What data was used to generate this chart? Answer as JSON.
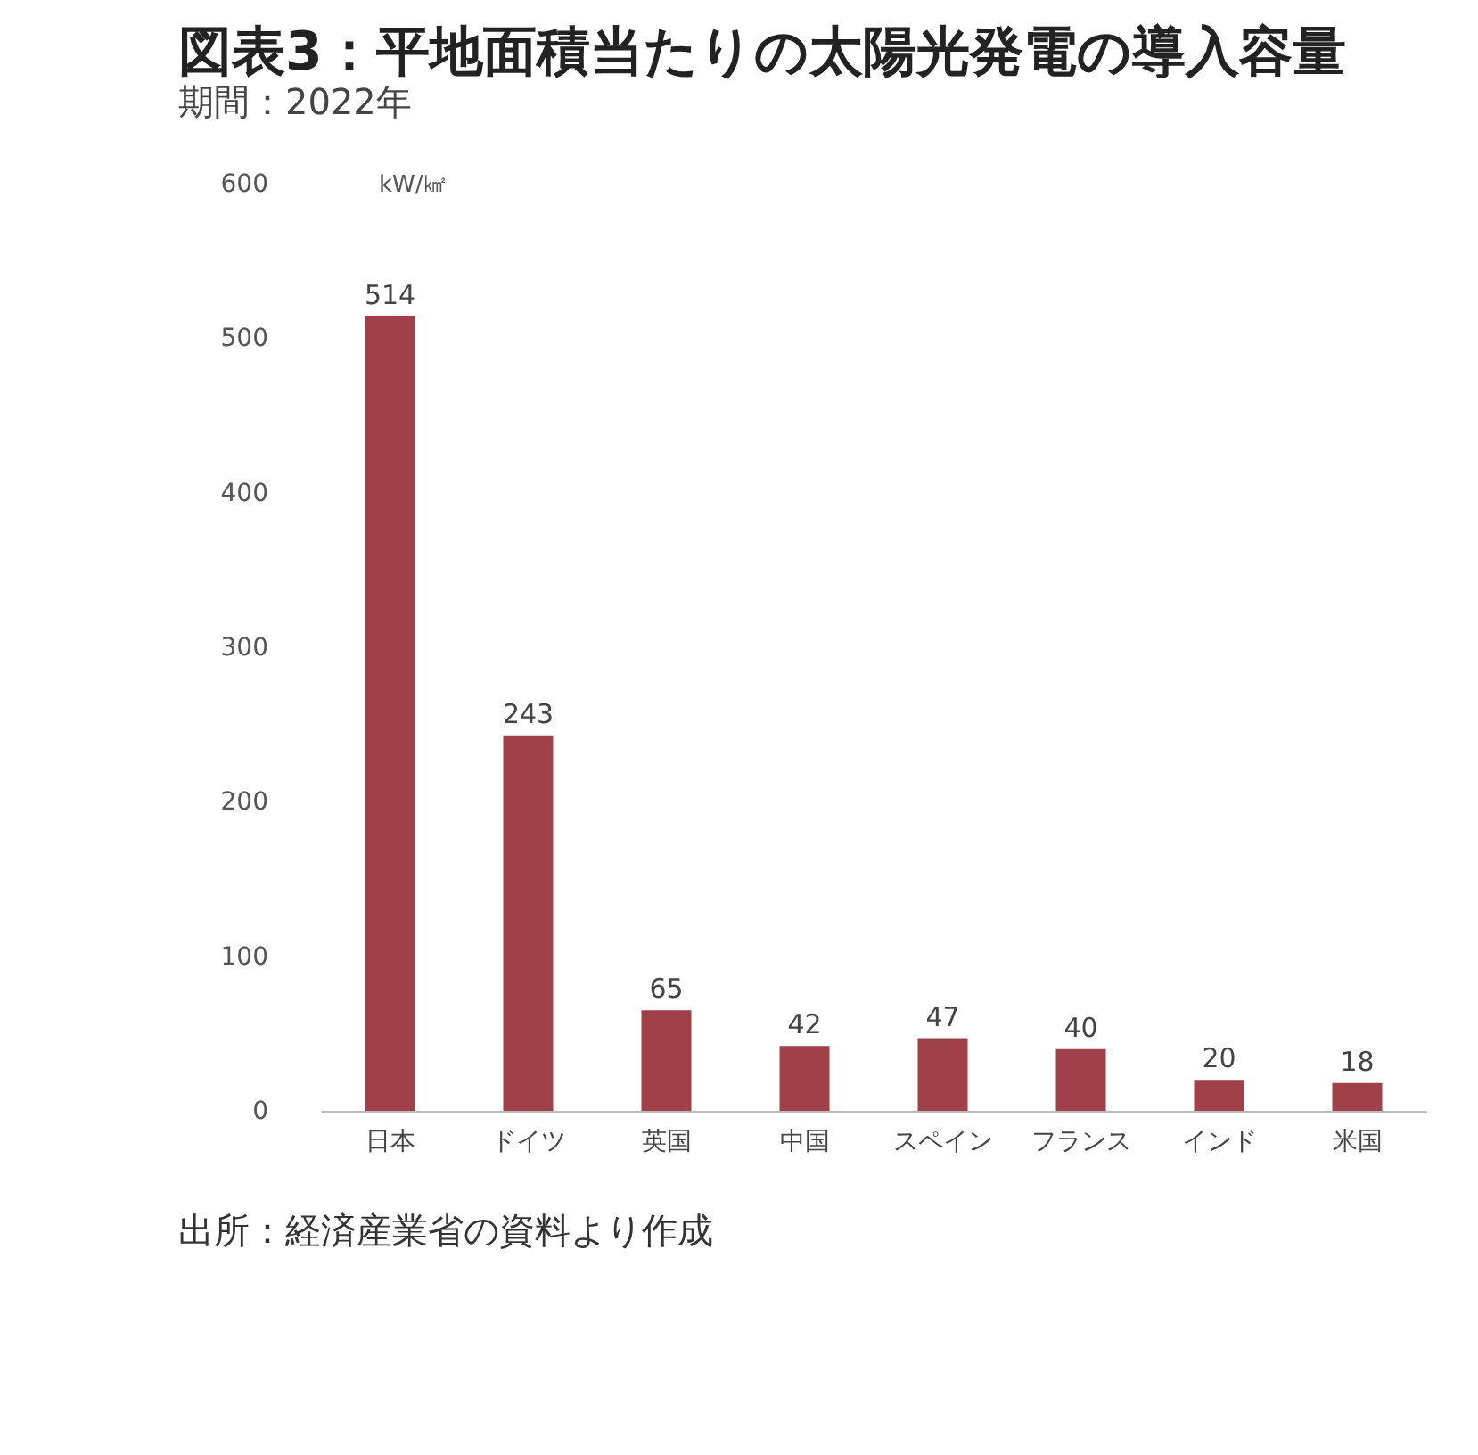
{
  "chart_data": {
    "type": "bar",
    "title": "図表3：平地面積当たりの太陽光発電の導入容量",
    "subtitle": "期間：2022年",
    "ylabel": "kW/㎢",
    "categories": [
      "日本",
      "ドイツ",
      "英国",
      "中国",
      "スペイン",
      "フランス",
      "インド",
      "米国"
    ],
    "values": [
      514,
      243,
      65,
      42,
      47,
      40,
      20,
      18
    ],
    "color": "#a0414a",
    "ylim": [
      0,
      600
    ],
    "yticks": [
      0,
      100,
      200,
      300,
      400,
      500,
      600
    ],
    "grid": false,
    "data_labels": true,
    "annotations": [
      "出所：経済産業省の資料より作成"
    ]
  }
}
